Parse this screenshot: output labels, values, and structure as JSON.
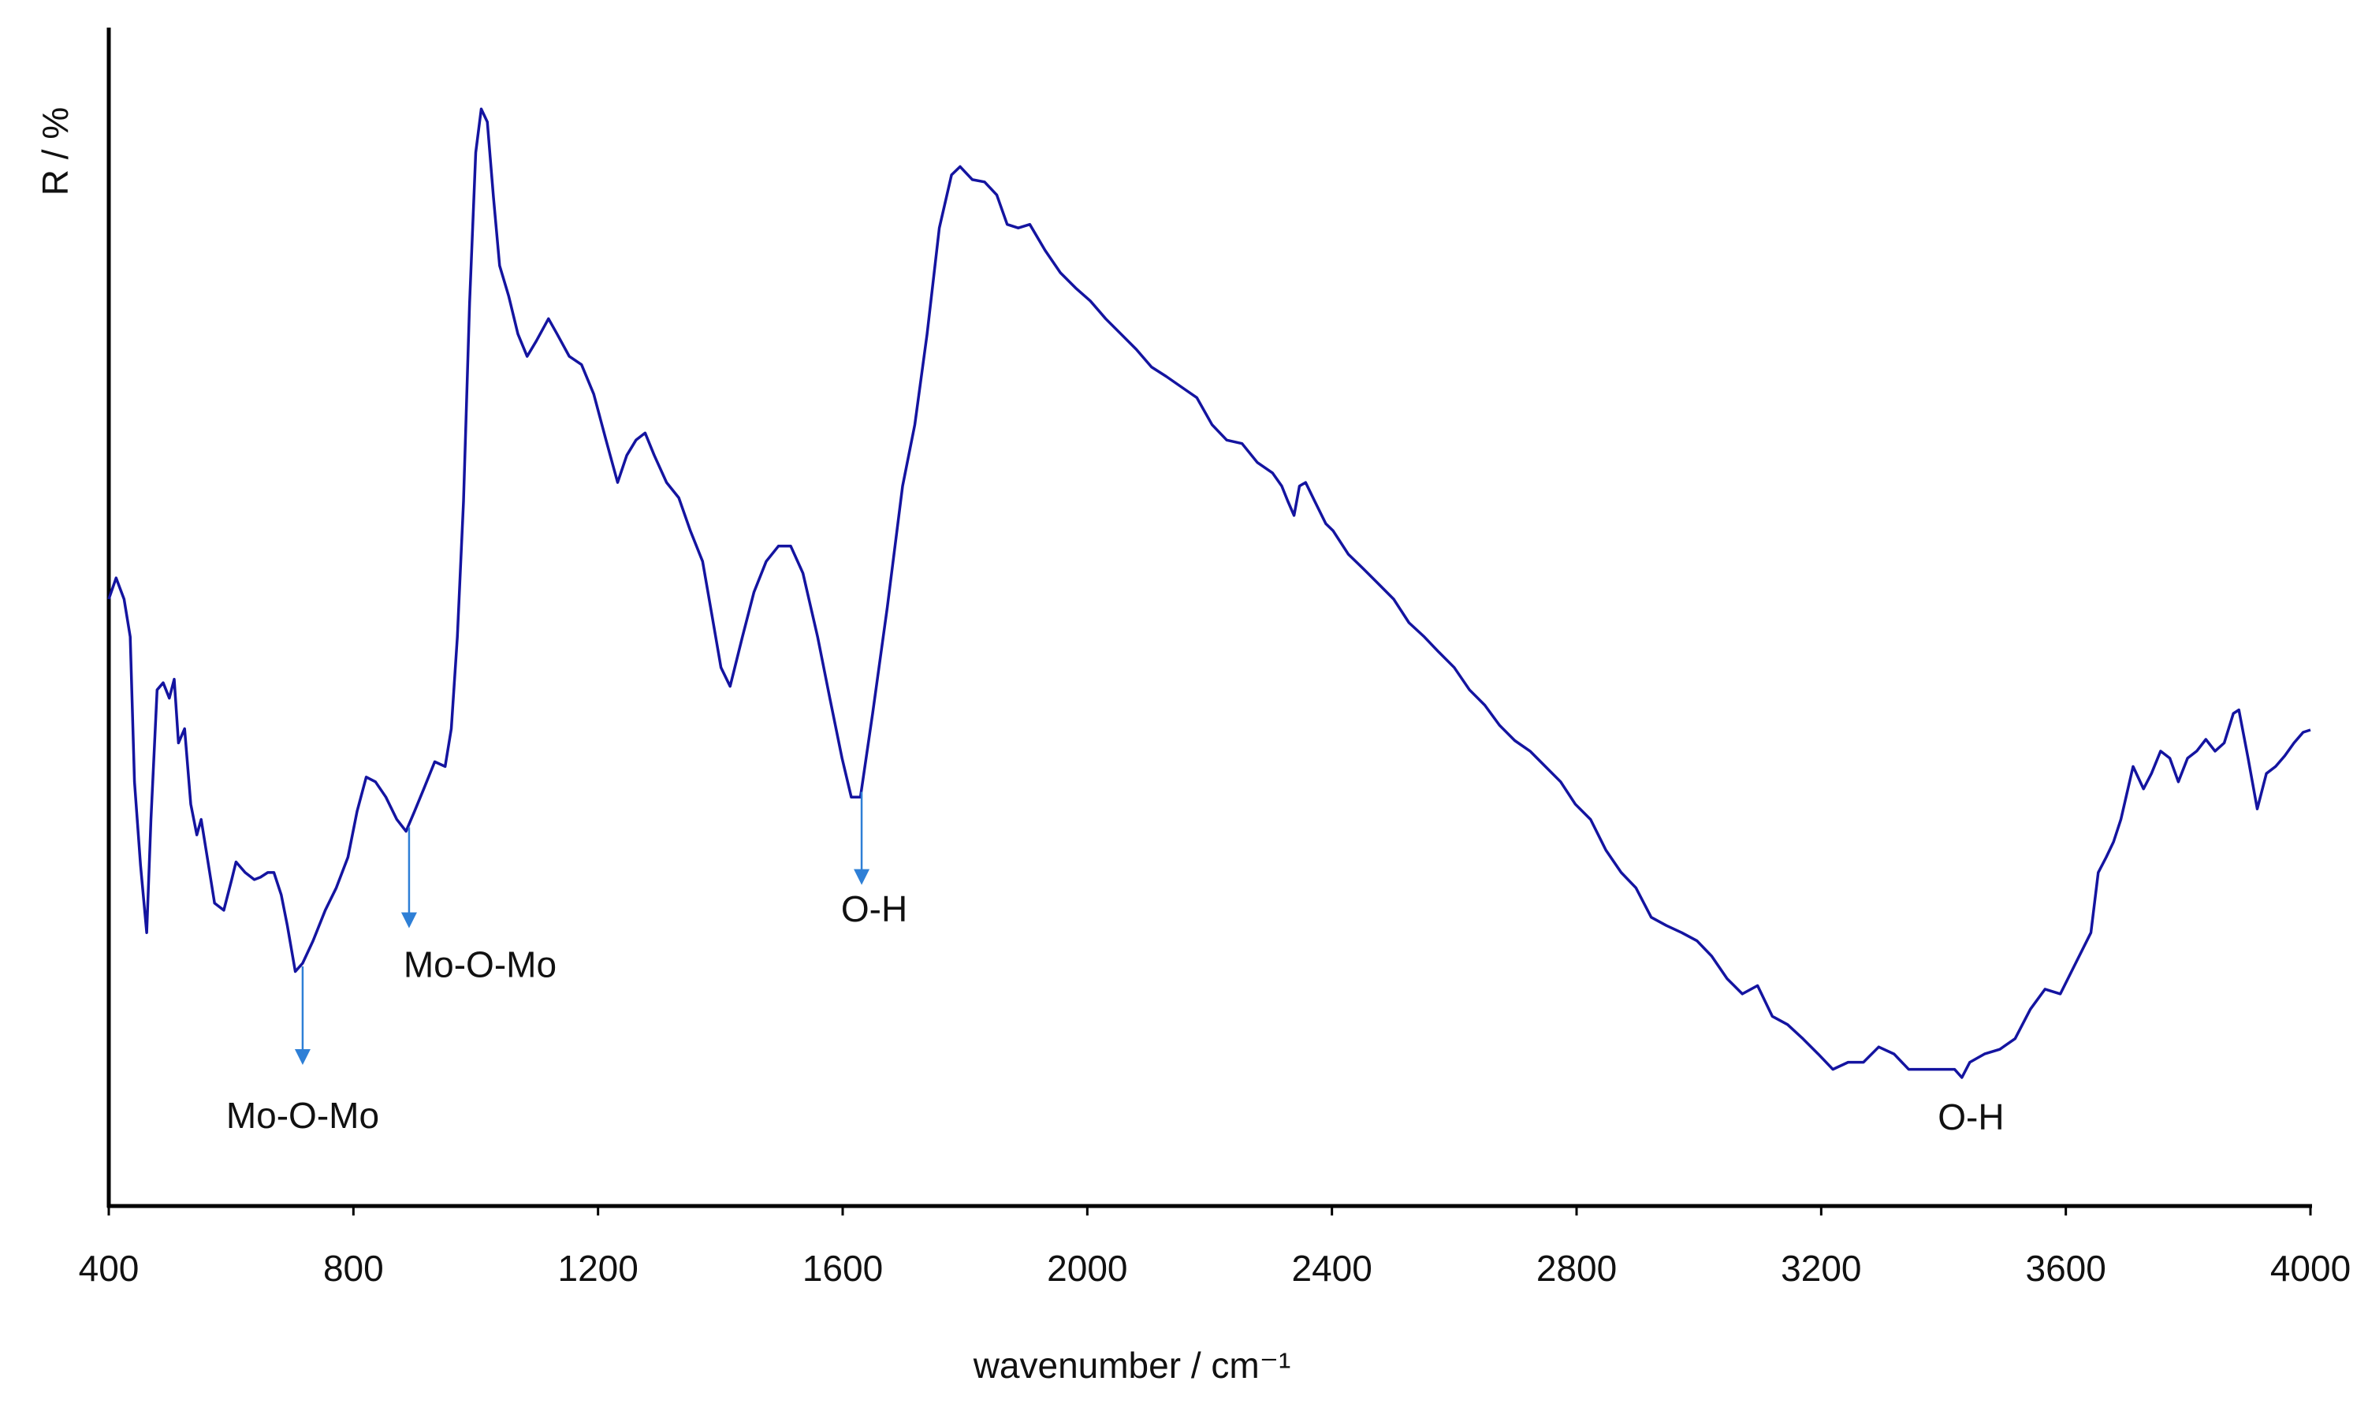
{
  "chart_data": {
    "type": "line",
    "y_label": "R / %",
    "x_label": "wavenumber / cm⁻¹",
    "color": "#1414a0",
    "arrow_color": "#2e7fd6",
    "xlim": [
      400,
      4000
    ],
    "xticks": [
      400,
      800,
      1200,
      1600,
      2000,
      2400,
      2800,
      3200,
      3600,
      4000
    ],
    "ylim": [
      0,
      100
    ],
    "grid": false,
    "x": [
      400,
      412,
      425,
      435,
      442,
      452,
      462,
      469,
      479,
      489,
      499,
      507,
      514,
      524,
      534,
      544,
      551,
      561,
      573,
      588,
      601,
      608,
      623,
      638,
      648,
      660,
      670,
      682,
      692,
      705,
      717,
      734,
      754,
      772,
      791,
      806,
      821,
      836,
      853,
      871,
      886,
      900,
      915,
      933,
      950,
      960,
      970,
      980,
      990,
      1000,
      1009,
      1019,
      1029,
      1039,
      1054,
      1069,
      1084,
      1099,
      1119,
      1133,
      1153,
      1173,
      1193,
      1213,
      1232,
      1247,
      1262,
      1277,
      1292,
      1312,
      1332,
      1351,
      1371,
      1386,
      1401,
      1416,
      1436,
      1455,
      1475,
      1495,
      1515,
      1535,
      1559,
      1579,
      1599,
      1614,
      1629,
      1649,
      1673,
      1698,
      1718,
      1738,
      1758,
      1778,
      1792,
      1812,
      1832,
      1852,
      1869,
      1887,
      1906,
      1931,
      1956,
      1981,
      2005,
      2030,
      2055,
      2080,
      2105,
      2129,
      2154,
      2179,
      2204,
      2228,
      2253,
      2278,
      2303,
      2318,
      2328,
      2338,
      2347,
      2357,
      2372,
      2390,
      2402,
      2427,
      2451,
      2476,
      2501,
      2526,
      2551,
      2575,
      2600,
      2625,
      2650,
      2674,
      2699,
      2724,
      2749,
      2774,
      2798,
      2823,
      2848,
      2873,
      2897,
      2922,
      2947,
      2972,
      2997,
      3021,
      3046,
      3071,
      3096,
      3120,
      3145,
      3170,
      3195,
      3219,
      3244,
      3269,
      3294,
      3319,
      3343,
      3368,
      3393,
      3418,
      3430,
      3443,
      3467,
      3492,
      3517,
      3542,
      3566,
      3591,
      3616,
      3641,
      3653,
      3666,
      3678,
      3690,
      3710,
      3727,
      3740,
      3755,
      3770,
      3784,
      3799,
      3814,
      3829,
      3844,
      3859,
      3874,
      3883,
      3898,
      3913,
      3928,
      3943,
      3958,
      3973,
      3988,
      4000
    ],
    "values": [
      51.5,
      53.3,
      51.5,
      48.3,
      36.0,
      28.9,
      23.2,
      32.8,
      43.8,
      44.4,
      43.1,
      44.7,
      39.3,
      40.5,
      34.1,
      31.5,
      32.8,
      29.6,
      25.7,
      25.1,
      27.7,
      29.2,
      28.3,
      27.7,
      27.9,
      28.3,
      28.3,
      26.4,
      23.8,
      19.9,
      20.6,
      22.5,
      25.1,
      27.0,
      29.6,
      33.5,
      36.4,
      36.0,
      34.7,
      32.8,
      31.8,
      33.5,
      35.4,
      37.7,
      37.3,
      40.5,
      48.3,
      59.8,
      76.6,
      89.4,
      93.1,
      92.0,
      85.6,
      79.8,
      77.2,
      74.0,
      72.1,
      73.4,
      75.3,
      74.0,
      72.1,
      71.4,
      68.9,
      65.0,
      61.4,
      63.7,
      65.0,
      65.6,
      63.7,
      61.4,
      60.1,
      57.3,
      54.7,
      50.2,
      45.7,
      44.1,
      48.3,
      52.1,
      54.7,
      56.0,
      56.0,
      53.7,
      48.3,
      43.1,
      38.0,
      34.7,
      34.7,
      41.8,
      50.8,
      61.1,
      66.3,
      74.0,
      83.0,
      87.5,
      88.2,
      87.1,
      86.9,
      85.8,
      83.3,
      83.0,
      83.3,
      81.1,
      79.2,
      77.9,
      76.8,
      75.3,
      74.0,
      72.7,
      71.2,
      70.4,
      69.5,
      68.6,
      66.3,
      65.0,
      64.7,
      63.1,
      62.2,
      61.1,
      59.8,
      58.6,
      61.1,
      61.4,
      59.8,
      57.9,
      57.3,
      55.3,
      54.1,
      52.8,
      51.5,
      49.5,
      48.3,
      47.0,
      45.7,
      43.8,
      42.5,
      40.8,
      39.5,
      38.6,
      37.3,
      36.0,
      34.1,
      32.8,
      30.2,
      28.3,
      27.0,
      24.5,
      23.8,
      23.2,
      22.5,
      21.2,
      19.3,
      18.0,
      18.7,
      16.1,
      15.4,
      14.2,
      12.9,
      11.6,
      12.2,
      12.2,
      13.5,
      12.9,
      11.6,
      11.6,
      11.6,
      11.6,
      10.9,
      12.2,
      12.9,
      13.3,
      14.2,
      16.7,
      18.4,
      18.0,
      20.6,
      23.2,
      28.3,
      29.6,
      30.9,
      32.8,
      37.3,
      35.4,
      36.7,
      38.6,
      38.0,
      36.0,
      38.0,
      38.6,
      39.6,
      38.6,
      39.3,
      41.8,
      42.1,
      38.0,
      33.7,
      36.7,
      37.3,
      38.2,
      39.3,
      40.2,
      40.4
    ],
    "annotations": [
      {
        "text": "Mo-O-Mo",
        "x": 717,
        "arrow": true
      },
      {
        "text": "Mo-O-Mo",
        "x": 891,
        "arrow": true
      },
      {
        "text": "O-H",
        "x": 1631,
        "arrow": true
      },
      {
        "text": "O-H",
        "x": 3445,
        "arrow": false
      }
    ]
  }
}
